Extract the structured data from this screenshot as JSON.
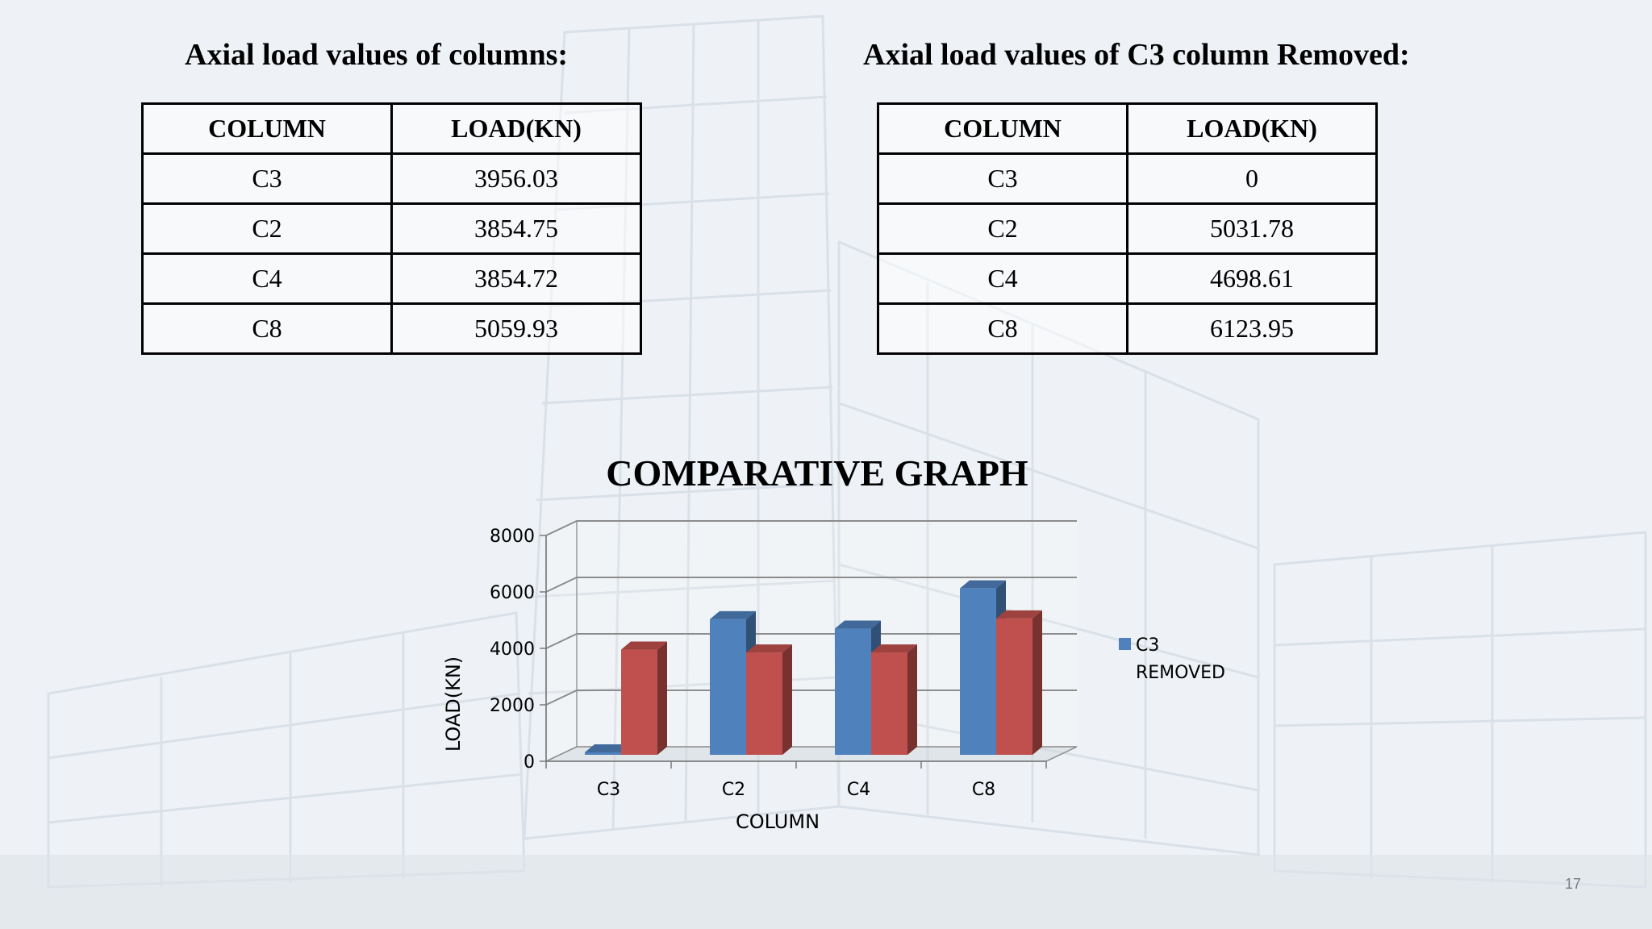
{
  "tables": {
    "left": {
      "title": "Axial load values of columns:",
      "headers": [
        "COLUMN",
        "LOAD(KN)"
      ],
      "rows": [
        [
          "C3",
          "3956.03"
        ],
        [
          "C2",
          "3854.75"
        ],
        [
          "C4",
          "3854.72"
        ],
        [
          "C8",
          "5059.93"
        ]
      ]
    },
    "right": {
      "title": "Axial load values of C3 column Removed:",
      "headers": [
        "COLUMN",
        "LOAD(KN)"
      ],
      "rows": [
        [
          "C3",
          "0"
        ],
        [
          "C2",
          "5031.78"
        ],
        [
          "C4",
          "4698.61"
        ],
        [
          "C8",
          "6123.95"
        ]
      ]
    }
  },
  "chart_data": {
    "type": "bar",
    "title": "COMPARATIVE GRAPH",
    "xlabel": "COLUMN",
    "ylabel": "LOAD(KN)",
    "categories": [
      "C3",
      "C2",
      "C4",
      "C8"
    ],
    "ylim": [
      0,
      8000
    ],
    "yticks": [
      "0",
      "2000",
      "4000",
      "6000",
      "8000"
    ],
    "grid": true,
    "legend_position": "right",
    "series": [
      {
        "name": "C3 REMOVED",
        "values": [
          0,
          5031.78,
          4698.61,
          6123.95
        ],
        "color": "#4f81bd"
      },
      {
        "values": [
          3956.03,
          3854.75,
          3854.72,
          5059.93
        ],
        "color": "#c0504d"
      }
    ],
    "legend": {
      "line1": "C3",
      "line2": "REMOVED"
    }
  },
  "page_number": "17"
}
